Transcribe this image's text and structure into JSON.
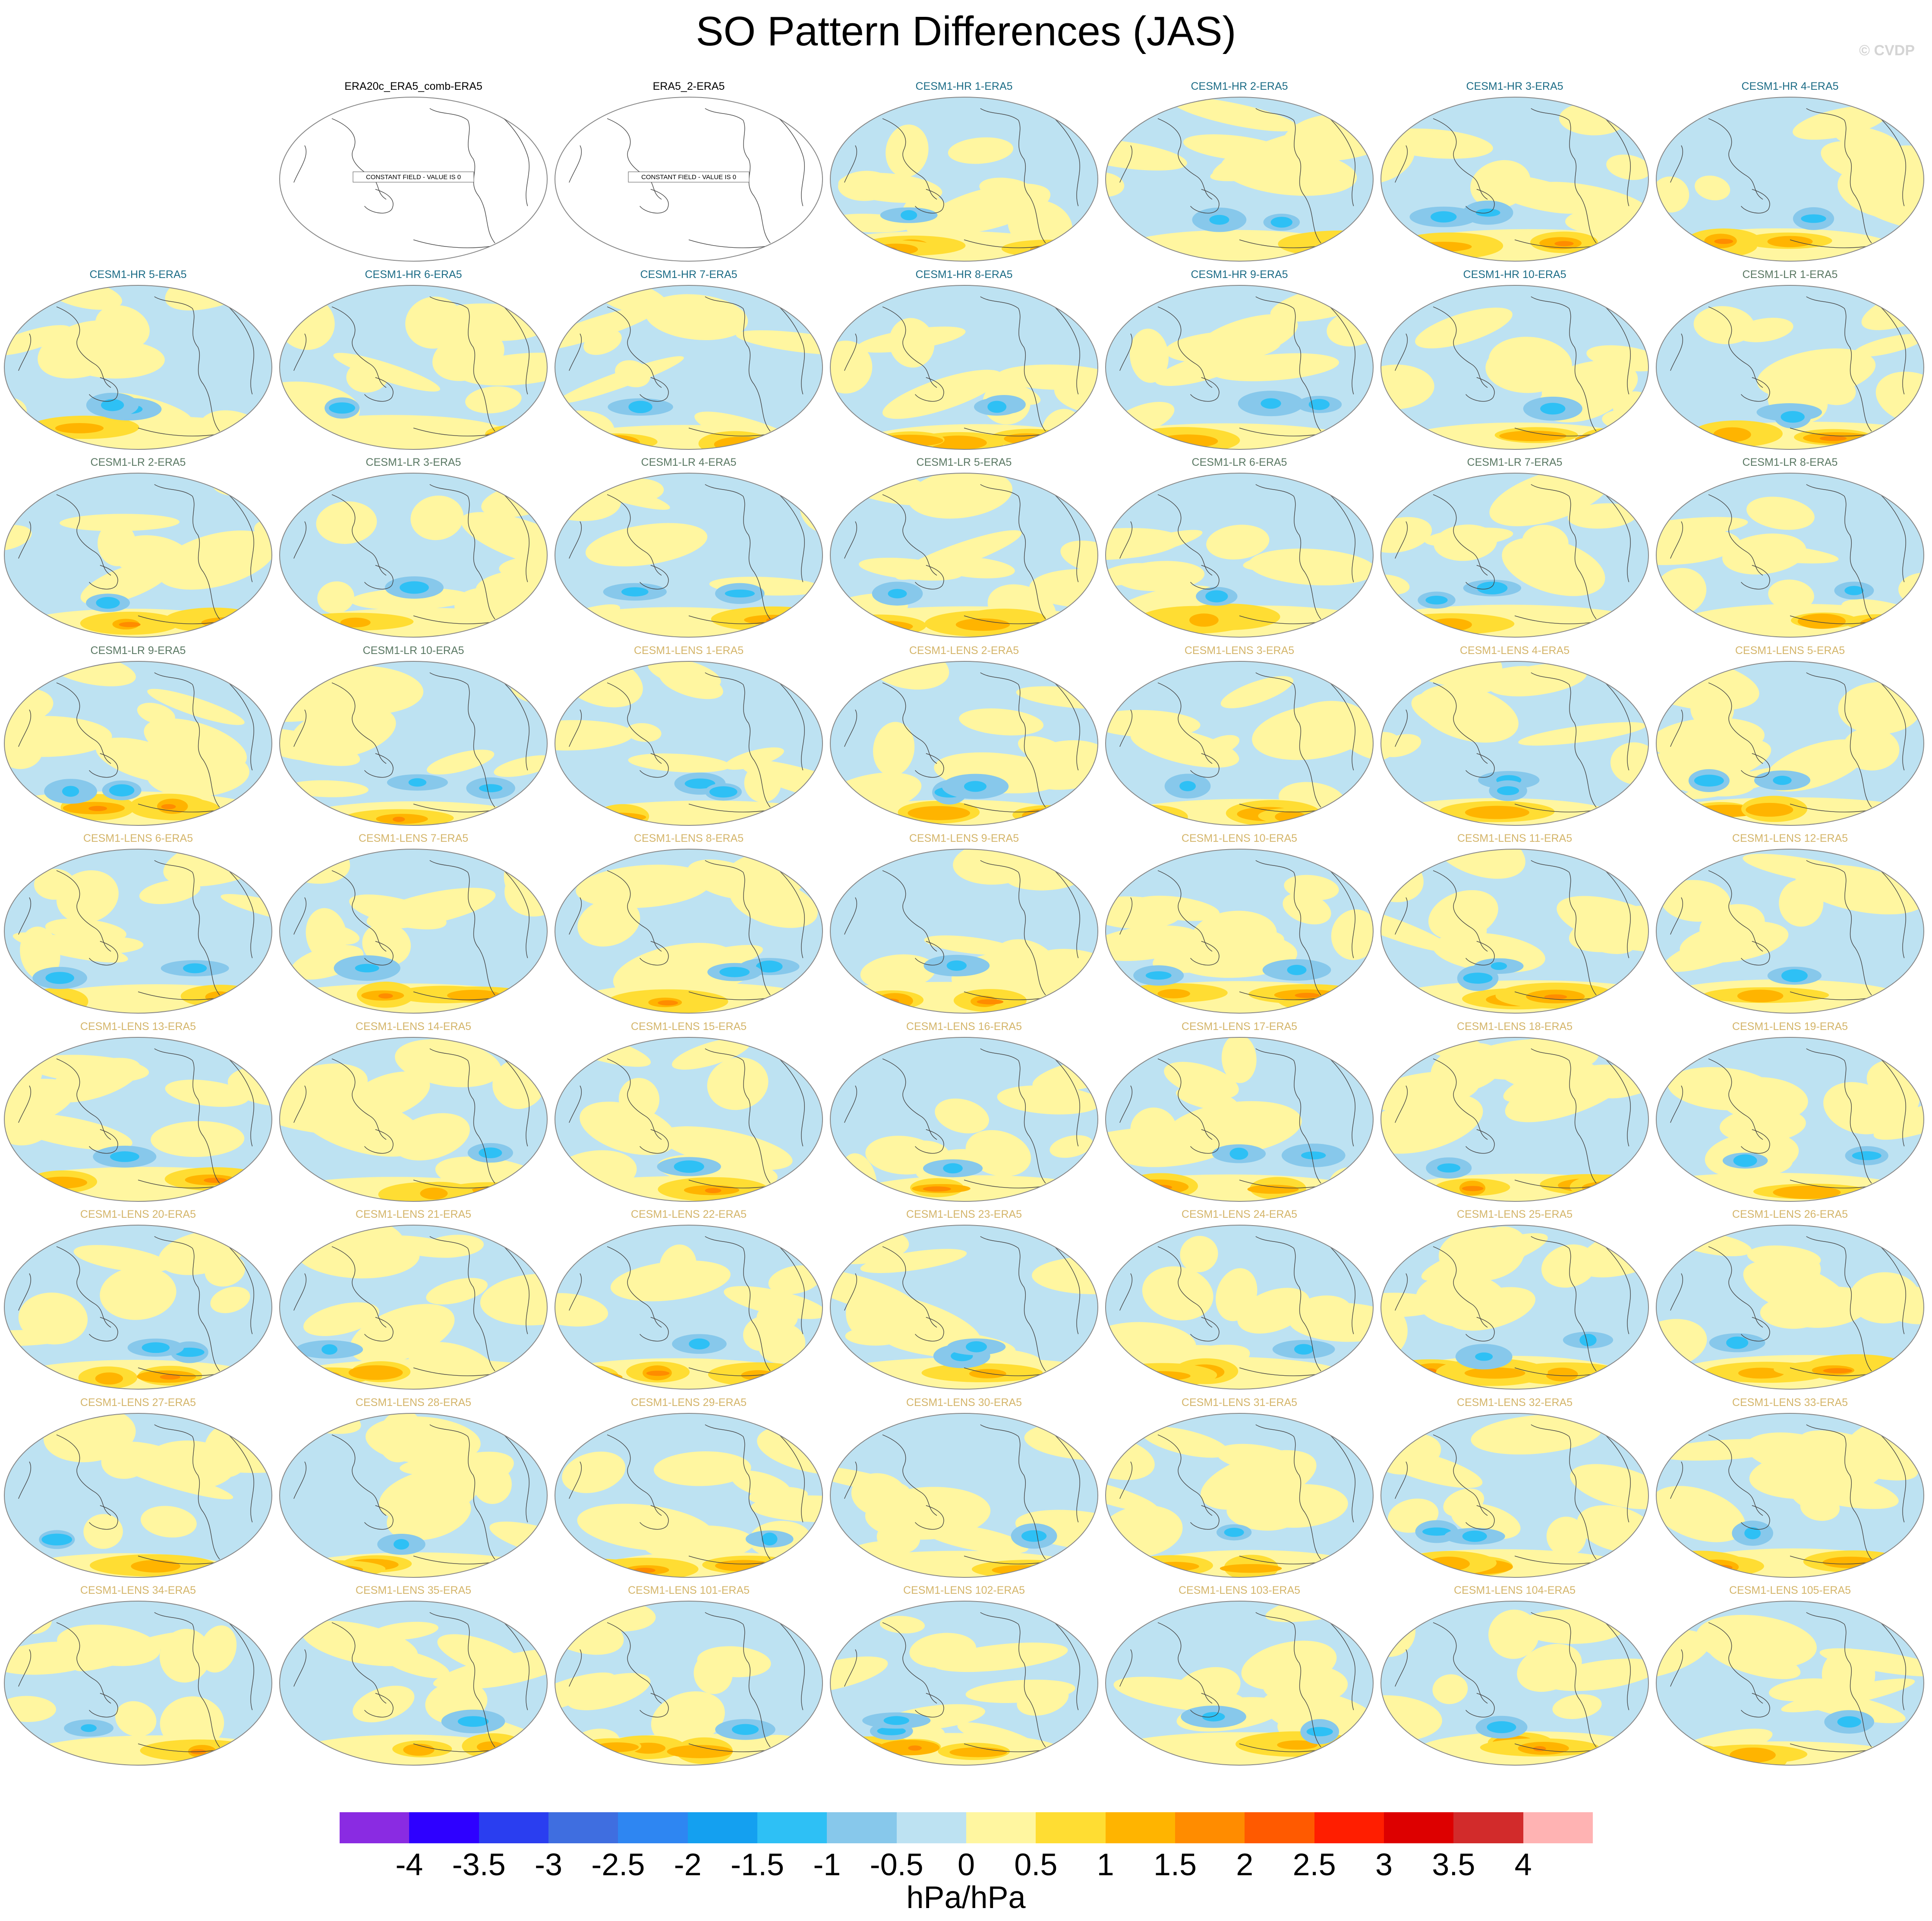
{
  "title": "SO Pattern Differences (JAS)",
  "watermark": "© CVDP",
  "units": "hPa/hPa",
  "colorbar": {
    "ticks": [
      "-4",
      "-3.5",
      "-3",
      "-2.5",
      "-2",
      "-1.5",
      "-1",
      "-0.5",
      "0",
      "0.5",
      "1",
      "1.5",
      "2",
      "2.5",
      "3",
      "3.5",
      "4"
    ],
    "colors": [
      "#8A2BE2",
      "#2E00FF",
      "#2A3EF0",
      "#3F6EE0",
      "#2E86F2",
      "#14A0F0",
      "#2EC0F5",
      "#87C8EB",
      "#BDE2F2",
      "#FFF6A0",
      "#FFDD33",
      "#FFB400",
      "#FF8C00",
      "#FF5A00",
      "#FF1E00",
      "#DD0000",
      "#D22B2B",
      "#FFB3B3"
    ]
  },
  "label_colors": {
    "obs": "#000000",
    "hr": "#1C6C86",
    "lr": "#5A7863",
    "lens": "#D4B56A"
  },
  "map_colors": {
    "ocean_neg": "#BDE2F2",
    "pos": "#FFF6A0",
    "pos_mid": "#FFDD33",
    "pos_high": "#FFB400",
    "pos_max": "#FF8C00",
    "neg_mid": "#87C8EB",
    "neg_high": "#2EC0F5",
    "coast": "#444444",
    "frame": "#888888"
  },
  "panels": [
    {
      "label": "ERA20c_ERA5_comb-ERA5",
      "group": "obs",
      "constant": true,
      "note": "CONSTANT FIELD - VALUE IS 0"
    },
    {
      "label": "ERA5_2-ERA5",
      "group": "obs",
      "constant": true,
      "note": "CONSTANT FIELD - VALUE IS 0"
    },
    {
      "label": "CESM1-HR 1-ERA5",
      "group": "hr"
    },
    {
      "label": "CESM1-HR 2-ERA5",
      "group": "hr"
    },
    {
      "label": "CESM1-HR 3-ERA5",
      "group": "hr"
    },
    {
      "label": "CESM1-HR 4-ERA5",
      "group": "hr"
    },
    {
      "label": "CESM1-HR 5-ERA5",
      "group": "hr"
    },
    {
      "label": "CESM1-HR 6-ERA5",
      "group": "hr"
    },
    {
      "label": "CESM1-HR 7-ERA5",
      "group": "hr"
    },
    {
      "label": "CESM1-HR 8-ERA5",
      "group": "hr"
    },
    {
      "label": "CESM1-HR 9-ERA5",
      "group": "hr"
    },
    {
      "label": "CESM1-HR 10-ERA5",
      "group": "hr"
    },
    {
      "label": "CESM1-LR 1-ERA5",
      "group": "lr"
    },
    {
      "label": "CESM1-LR 2-ERA5",
      "group": "lr"
    },
    {
      "label": "CESM1-LR 3-ERA5",
      "group": "lr"
    },
    {
      "label": "CESM1-LR 4-ERA5",
      "group": "lr"
    },
    {
      "label": "CESM1-LR 5-ERA5",
      "group": "lr"
    },
    {
      "label": "CESM1-LR 6-ERA5",
      "group": "lr"
    },
    {
      "label": "CESM1-LR 7-ERA5",
      "group": "lr"
    },
    {
      "label": "CESM1-LR 8-ERA5",
      "group": "lr"
    },
    {
      "label": "CESM1-LR 9-ERA5",
      "group": "lr"
    },
    {
      "label": "CESM1-LR 10-ERA5",
      "group": "lr"
    },
    {
      "label": "CESM1-LENS 1-ERA5",
      "group": "lens"
    },
    {
      "label": "CESM1-LENS 2-ERA5",
      "group": "lens"
    },
    {
      "label": "CESM1-LENS 3-ERA5",
      "group": "lens"
    },
    {
      "label": "CESM1-LENS 4-ERA5",
      "group": "lens"
    },
    {
      "label": "CESM1-LENS 5-ERA5",
      "group": "lens"
    },
    {
      "label": "CESM1-LENS 6-ERA5",
      "group": "lens"
    },
    {
      "label": "CESM1-LENS 7-ERA5",
      "group": "lens"
    },
    {
      "label": "CESM1-LENS 8-ERA5",
      "group": "lens"
    },
    {
      "label": "CESM1-LENS 9-ERA5",
      "group": "lens"
    },
    {
      "label": "CESM1-LENS 10-ERA5",
      "group": "lens"
    },
    {
      "label": "CESM1-LENS 11-ERA5",
      "group": "lens"
    },
    {
      "label": "CESM1-LENS 12-ERA5",
      "group": "lens"
    },
    {
      "label": "CESM1-LENS 13-ERA5",
      "group": "lens"
    },
    {
      "label": "CESM1-LENS 14-ERA5",
      "group": "lens"
    },
    {
      "label": "CESM1-LENS 15-ERA5",
      "group": "lens"
    },
    {
      "label": "CESM1-LENS 16-ERA5",
      "group": "lens"
    },
    {
      "label": "CESM1-LENS 17-ERA5",
      "group": "lens"
    },
    {
      "label": "CESM1-LENS 18-ERA5",
      "group": "lens"
    },
    {
      "label": "CESM1-LENS 19-ERA5",
      "group": "lens"
    },
    {
      "label": "CESM1-LENS 20-ERA5",
      "group": "lens"
    },
    {
      "label": "CESM1-LENS 21-ERA5",
      "group": "lens"
    },
    {
      "label": "CESM1-LENS 22-ERA5",
      "group": "lens"
    },
    {
      "label": "CESM1-LENS 23-ERA5",
      "group": "lens"
    },
    {
      "label": "CESM1-LENS 24-ERA5",
      "group": "lens"
    },
    {
      "label": "CESM1-LENS 25-ERA5",
      "group": "lens"
    },
    {
      "label": "CESM1-LENS 26-ERA5",
      "group": "lens"
    },
    {
      "label": "CESM1-LENS 27-ERA5",
      "group": "lens"
    },
    {
      "label": "CESM1-LENS 28-ERA5",
      "group": "lens"
    },
    {
      "label": "CESM1-LENS 29-ERA5",
      "group": "lens"
    },
    {
      "label": "CESM1-LENS 30-ERA5",
      "group": "lens"
    },
    {
      "label": "CESM1-LENS 31-ERA5",
      "group": "lens"
    },
    {
      "label": "CESM1-LENS 32-ERA5",
      "group": "lens"
    },
    {
      "label": "CESM1-LENS 33-ERA5",
      "group": "lens"
    },
    {
      "label": "CESM1-LENS 34-ERA5",
      "group": "lens"
    },
    {
      "label": "CESM1-LENS 35-ERA5",
      "group": "lens"
    },
    {
      "label": "CESM1-LENS 101-ERA5",
      "group": "lens"
    },
    {
      "label": "CESM1-LENS 102-ERA5",
      "group": "lens"
    },
    {
      "label": "CESM1-LENS 103-ERA5",
      "group": "lens"
    },
    {
      "label": "CESM1-LENS 104-ERA5",
      "group": "lens"
    },
    {
      "label": "CESM1-LENS 105-ERA5",
      "group": "lens"
    }
  ]
}
